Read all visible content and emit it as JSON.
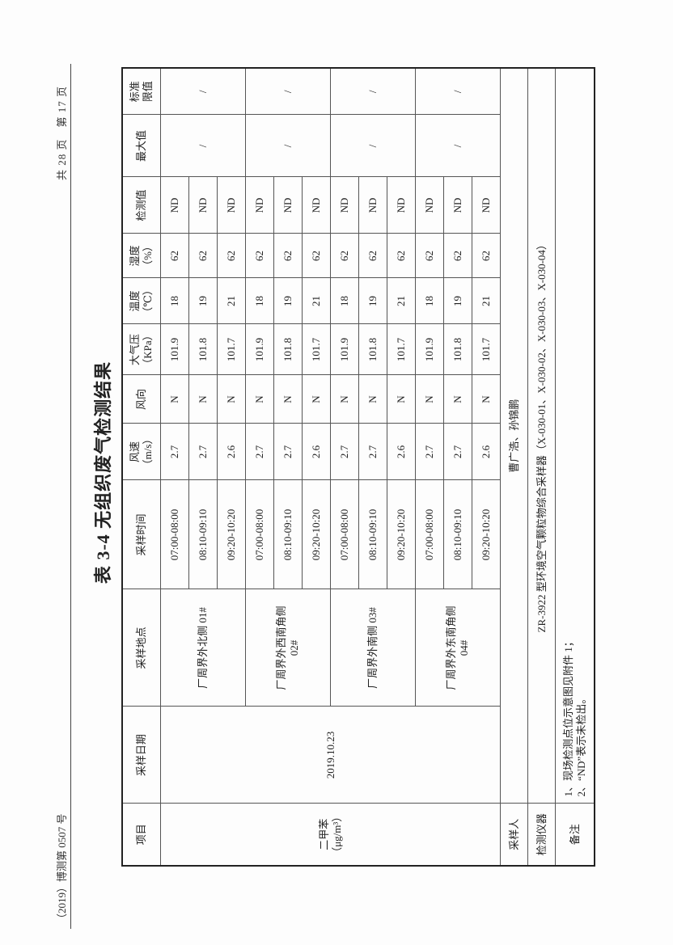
{
  "header": {
    "report_no": "（2019）博测第 0507 号",
    "page_info": "共 28 页　第 17 页"
  },
  "title": "表 3-4  无组织废气检测结果",
  "columns": {
    "item": "项目",
    "date": "采样日期",
    "site": "采样地点",
    "time": "采样时间",
    "wind_speed": [
      "风速",
      "（m/s）"
    ],
    "wind_dir": "风向",
    "pressure": [
      "大气压",
      "（KPa）"
    ],
    "temp": [
      "温度",
      "（℃）"
    ],
    "humidity": [
      "湿度",
      "（%）"
    ],
    "value": "检测值",
    "max": "最大值",
    "limit": [
      "标准",
      "限值"
    ]
  },
  "item": [
    "二甲苯",
    "（μg/m³）"
  ],
  "date": "2019.10.23",
  "groups": [
    {
      "site": [
        "厂周界外北侧 01#"
      ],
      "max": "/",
      "limit": "/",
      "rows": [
        {
          "time": "07:00-08:00",
          "ws": "2.7",
          "wd": "N",
          "p": "101.9",
          "t": "18",
          "h": "62",
          "v": "ND"
        },
        {
          "time": "08:10-09:10",
          "ws": "2.7",
          "wd": "N",
          "p": "101.8",
          "t": "19",
          "h": "62",
          "v": "ND"
        },
        {
          "time": "09:20-10:20",
          "ws": "2.6",
          "wd": "N",
          "p": "101.7",
          "t": "21",
          "h": "62",
          "v": "ND"
        }
      ]
    },
    {
      "site": [
        "厂周界外西南角侧",
        "02#"
      ],
      "max": "/",
      "limit": "/",
      "rows": [
        {
          "time": "07:00-08:00",
          "ws": "2.7",
          "wd": "N",
          "p": "101.9",
          "t": "18",
          "h": "62",
          "v": "ND"
        },
        {
          "time": "08:10-09:10",
          "ws": "2.7",
          "wd": "N",
          "p": "101.8",
          "t": "19",
          "h": "62",
          "v": "ND"
        },
        {
          "time": "09:20-10:20",
          "ws": "2.6",
          "wd": "N",
          "p": "101.7",
          "t": "21",
          "h": "62",
          "v": "ND"
        }
      ]
    },
    {
      "site": [
        "厂周界外南侧 03#"
      ],
      "max": "/",
      "limit": "/",
      "rows": [
        {
          "time": "07:00-08:00",
          "ws": "2.7",
          "wd": "N",
          "p": "101.9",
          "t": "18",
          "h": "62",
          "v": "ND"
        },
        {
          "time": "08:10-09:10",
          "ws": "2.7",
          "wd": "N",
          "p": "101.8",
          "t": "19",
          "h": "62",
          "v": "ND"
        },
        {
          "time": "09:20-10:20",
          "ws": "2.6",
          "wd": "N",
          "p": "101.7",
          "t": "21",
          "h": "62",
          "v": "ND"
        }
      ]
    },
    {
      "site": [
        "厂周界外东南角侧",
        "04#"
      ],
      "max": "/",
      "limit": "/",
      "rows": [
        {
          "time": "07:00-08:00",
          "ws": "2.7",
          "wd": "N",
          "p": "101.9",
          "t": "18",
          "h": "62",
          "v": "ND"
        },
        {
          "time": "08:10-09:10",
          "ws": "2.7",
          "wd": "N",
          "p": "101.8",
          "t": "19",
          "h": "62",
          "v": "ND"
        },
        {
          "time": "09:20-10:20",
          "ws": "2.6",
          "wd": "N",
          "p": "101.7",
          "t": "21",
          "h": "62",
          "v": "ND"
        }
      ]
    }
  ],
  "sampler": {
    "label": "采样人",
    "value": "曹广浩、孙锦鹏"
  },
  "instrument": {
    "label": "检测仪器",
    "value": "ZR-3922 型环境空气颗粒物综合采样器（X-030-01、X-030-02、X-030-03、X-030-04）"
  },
  "remarks": {
    "label": "备注",
    "lines": [
      "1、现场检测点位示意图见附件 1；",
      "2、“ND”表示未检出。"
    ]
  }
}
